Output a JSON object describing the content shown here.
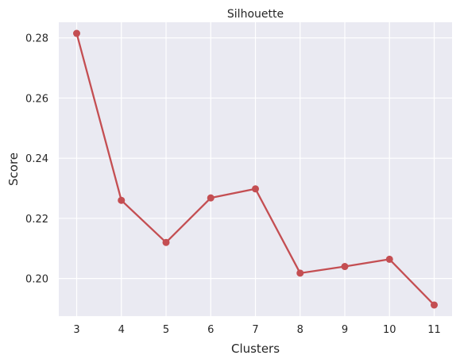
{
  "chart_data": {
    "type": "line",
    "title": "Silhouette",
    "xlabel": "Clusters",
    "ylabel": "Score",
    "x": [
      3,
      4,
      5,
      6,
      7,
      8,
      9,
      10,
      11
    ],
    "series": [
      {
        "values": [
          0.2815,
          0.226,
          0.212,
          0.2268,
          0.2298,
          0.2018,
          0.204,
          0.2064,
          0.1912
        ],
        "color": "#c44e52",
        "marker": "circle"
      }
    ],
    "xlim": [
      2.6,
      11.4
    ],
    "ylim": [
      0.1875,
      0.2852
    ],
    "xticks": [
      "3",
      "4",
      "5",
      "6",
      "7",
      "8",
      "9",
      "10",
      "11"
    ],
    "yticks": [
      "0.20",
      "0.22",
      "0.24",
      "0.26",
      "0.28"
    ],
    "grid": true,
    "background": "#eaeaf2",
    "gridcolor": "#ffffff"
  }
}
